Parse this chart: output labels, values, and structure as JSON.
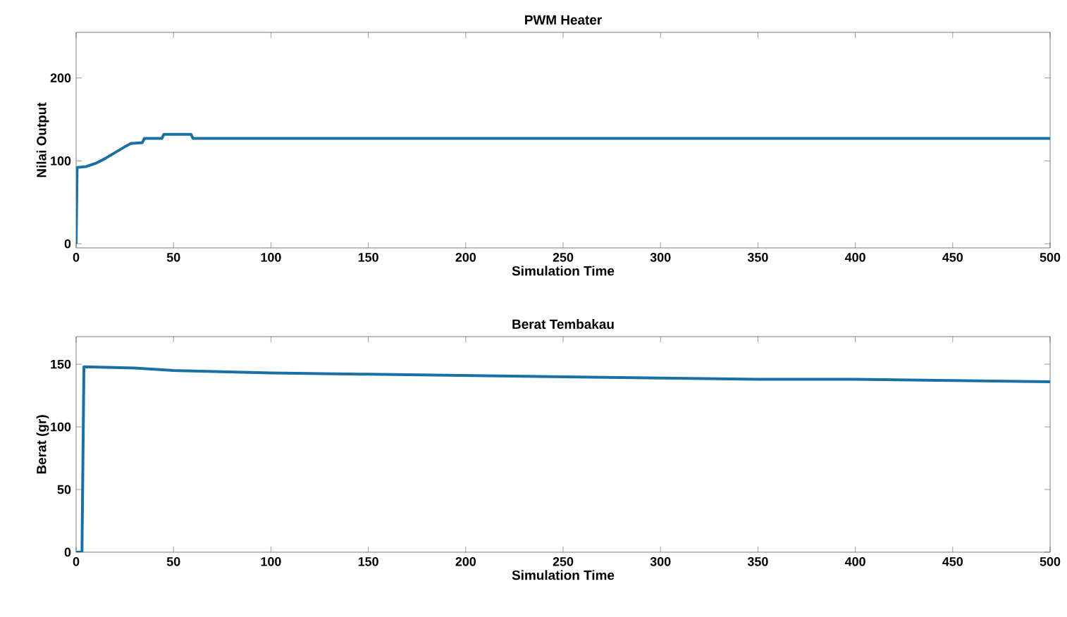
{
  "chart_data": [
    {
      "type": "line",
      "title": "PWM Heater",
      "xlabel": "Simulation Time",
      "ylabel": "Nilai Output",
      "xlim": [
        0,
        500
      ],
      "ylim": [
        -5,
        255
      ],
      "xticks": [
        0,
        50,
        100,
        150,
        200,
        250,
        300,
        350,
        400,
        450,
        500
      ],
      "yticks": [
        0,
        100,
        200
      ],
      "series": [
        {
          "color": "#1a6fa5",
          "x": [
            0,
            0.5,
            5,
            10,
            15,
            20,
            25,
            28,
            34,
            35,
            44,
            45,
            59,
            60,
            500
          ],
          "values": [
            0,
            92,
            93,
            97,
            103,
            110,
            117,
            121,
            122,
            127,
            127,
            132,
            132,
            127,
            127
          ]
        }
      ]
    },
    {
      "type": "line",
      "title": "Berat Tembakau",
      "xlabel": "Simulation Time",
      "ylabel": "Berat (gr)",
      "xlim": [
        0,
        500
      ],
      "ylim": [
        0,
        172
      ],
      "xticks": [
        0,
        50,
        100,
        150,
        200,
        250,
        300,
        350,
        400,
        450,
        500
      ],
      "yticks": [
        0,
        50,
        100,
        150
      ],
      "series": [
        {
          "color": "#1a6fa5",
          "x": [
            0,
            3,
            4,
            30,
            50,
            100,
            150,
            200,
            250,
            300,
            350,
            400,
            450,
            500
          ],
          "values": [
            0,
            0,
            148,
            147,
            145,
            143,
            142,
            141,
            140,
            139,
            138,
            138,
            137,
            136
          ]
        }
      ]
    }
  ]
}
